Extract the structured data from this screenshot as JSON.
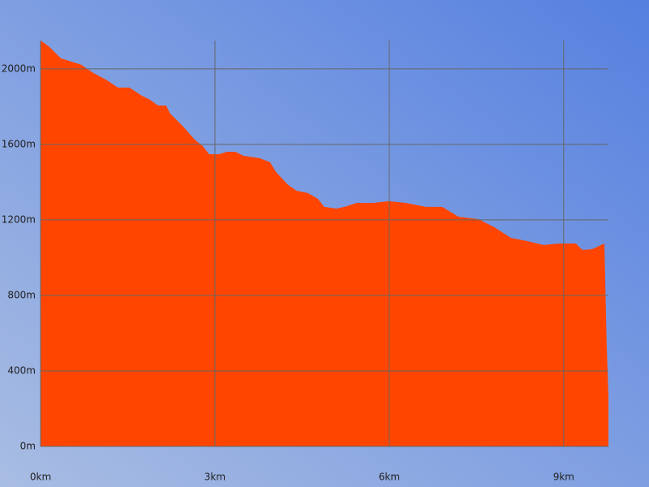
{
  "chart_data": {
    "type": "area",
    "x": [
      0,
      0.14,
      0.35,
      0.7,
      0.91,
      1.12,
      1.33,
      1.53,
      1.74,
      1.88,
      2.02,
      2.16,
      2.23,
      2.44,
      2.65,
      2.79,
      2.9,
      3.07,
      3.21,
      3.35,
      3.49,
      3.77,
      3.95,
      4.05,
      4.26,
      4.4,
      4.6,
      4.77,
      4.88,
      5.09,
      5.23,
      5.44,
      5.72,
      6.0,
      6.28,
      6.63,
      6.91,
      7.19,
      7.53,
      7.81,
      8.09,
      8.37,
      8.65,
      8.93,
      9.21,
      9.32,
      9.49,
      9.7,
      9.74,
      9.77
    ],
    "values": [
      2150,
      2120,
      2056,
      2022,
      1978,
      1944,
      1901,
      1901,
      1858,
      1837,
      1806,
      1806,
      1763,
      1699,
      1626,
      1591,
      1548,
      1548,
      1561,
      1561,
      1540,
      1527,
      1505,
      1454,
      1385,
      1355,
      1342,
      1312,
      1269,
      1260,
      1269,
      1290,
      1290,
      1299,
      1290,
      1269,
      1269,
      1217,
      1204,
      1161,
      1105,
      1088,
      1067,
      1075,
      1075,
      1041,
      1045,
      1075,
      538,
      260
    ],
    "color": "#ff4500",
    "xlim": [
      0,
      9.77
    ],
    "ylim": [
      0,
      2150
    ],
    "xticks": [
      {
        "value": 0,
        "label": "0km"
      },
      {
        "value": 3,
        "label": "3km"
      },
      {
        "value": 6,
        "label": "6km"
      },
      {
        "value": 9,
        "label": "9km"
      }
    ],
    "yticks": [
      {
        "value": 0,
        "label": "0m"
      },
      {
        "value": 400,
        "label": "400m"
      },
      {
        "value": 800,
        "label": "800m"
      },
      {
        "value": 1200,
        "label": "1200m"
      },
      {
        "value": 1600,
        "label": "1600m"
      },
      {
        "value": 2000,
        "label": "2000m"
      }
    ],
    "grid": true
  }
}
